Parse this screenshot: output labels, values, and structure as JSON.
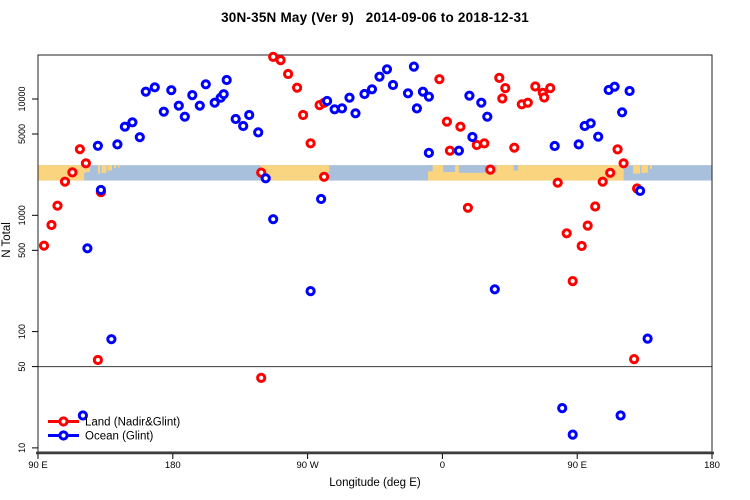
{
  "title": "30N-35N May (Ver 9)   2014-09-06 to 2018-12-31",
  "colors": {
    "land_series": "#FF0000",
    "ocean_series": "#0000FF",
    "band_ocean": "#A8C0DC",
    "band_land": "#FAD47F",
    "axis": "#000000",
    "ref_line": "#3c3c3c",
    "marker_fill": "#FFFFFF"
  },
  "legend": {
    "items": [
      {
        "label": "Land (Nadir&Glint)",
        "color": "#FF0000"
      },
      {
        "label": "Ocean (Glint)",
        "color": "#0000FF"
      }
    ]
  },
  "chart_data": {
    "type": "scatter",
    "title": "30N-35N May (Ver 9)   2014-09-06 to 2018-12-31",
    "xlabel": "Longitude (deg E)",
    "ylabel": "N Total",
    "xlim": [
      90,
      540
    ],
    "ylim": [
      10,
      30000
    ],
    "y_scale": "log",
    "grid": false,
    "legend_position": "bottom-left",
    "x_ticks": [
      {
        "value": 90,
        "label": "90 E"
      },
      {
        "value": 180,
        "label": "180"
      },
      {
        "value": 270,
        "label": "90 W"
      },
      {
        "value": 360,
        "label": "0"
      },
      {
        "value": 450,
        "label": "90 E"
      },
      {
        "value": 540,
        "label": "180"
      }
    ],
    "y_ticks": [
      {
        "value": 10000,
        "label": "10000"
      },
      {
        "value": 5000,
        "label": "5000"
      },
      {
        "value": 1000,
        "label": "1000"
      },
      {
        "value": 500,
        "label": "500"
      },
      {
        "value": 100,
        "label": "100"
      },
      {
        "value": 50,
        "label": "50"
      },
      {
        "value": 10,
        "label": "10"
      }
    ],
    "reference_line_y": 50,
    "map_band": {
      "description": "world coastline strip 30N-35N drawn across plot",
      "n_top": 2700,
      "n_bottom": 1990,
      "land_segments": [
        {
          "lon": [
            90,
            122
          ],
          "v": [
            0,
            1
          ]
        },
        {
          "lon": [
            122,
            124.7
          ],
          "v": [
            0,
            0.45
          ]
        },
        {
          "lon": [
            130,
            131.4
          ],
          "v": [
            0,
            0.55
          ]
        },
        {
          "lon": [
            132.4,
            135.7
          ],
          "v": [
            0,
            0.5
          ]
        },
        {
          "lon": [
            136.4,
            139.4
          ],
          "v": [
            0,
            0.35
          ]
        },
        {
          "lon": [
            140.7,
            142
          ],
          "v": [
            0,
            0.2
          ]
        },
        {
          "lon": [
            143.4,
            144.4
          ],
          "v": [
            0,
            0.15
          ]
        },
        {
          "lon": [
            238.5,
            284.5
          ],
          "v": [
            0,
            0.45
          ]
        },
        {
          "lon": [
            242,
            281.5
          ],
          "v": [
            0.45,
            0.75
          ]
        },
        {
          "lon": [
            245,
            279
          ],
          "v": [
            0.75,
            1
          ]
        },
        {
          "lon": [
            350.4,
            481
          ],
          "v": [
            0,
            1
          ]
        },
        {
          "lon": [
            487.3,
            492
          ],
          "v": [
            0,
            0.55
          ]
        },
        {
          "lon": [
            492.9,
            497.2
          ],
          "v": [
            0,
            0.5
          ]
        },
        {
          "lon": [
            498.6,
            499.9
          ],
          "v": [
            0,
            0.25
          ]
        }
      ],
      "ocean_notches": [
        {
          "lon": [
            350.4,
            353.5
          ],
          "v": [
            0,
            0.4
          ]
        },
        {
          "lon": [
            360.5,
            368.5
          ],
          "v": [
            0,
            0.45
          ]
        },
        {
          "lon": [
            371,
            396
          ],
          "v": [
            0,
            0.5
          ]
        },
        {
          "lon": [
            407.5,
            410.5
          ],
          "v": [
            0,
            0.35
          ]
        },
        {
          "lon": [
            120.8,
            122
          ],
          "v": [
            0.5,
            1
          ]
        }
      ]
    },
    "series": [
      {
        "name": "Land (Nadir&Glint)",
        "color": "#FF0000",
        "points": [
          [
            118,
            3700
          ],
          [
            122,
            2800
          ],
          [
            113,
            2340
          ],
          [
            108,
            1945
          ],
          [
            132,
            1580
          ],
          [
            103,
            1210
          ],
          [
            99,
            825
          ],
          [
            94,
            548
          ],
          [
            130,
            57
          ],
          [
            239,
            2330
          ],
          [
            239,
            40
          ],
          [
            247,
            23000
          ],
          [
            252,
            21600
          ],
          [
            257,
            16400
          ],
          [
            263,
            12500
          ],
          [
            267,
            7280
          ],
          [
            272,
            4160
          ],
          [
            278,
            8870
          ],
          [
            281,
            9270
          ],
          [
            281,
            2145
          ],
          [
            358,
            14800
          ],
          [
            363,
            6380
          ],
          [
            372,
            5780
          ],
          [
            365,
            3590
          ],
          [
            383,
            4020
          ],
          [
            388,
            4150
          ],
          [
            392,
            2470
          ],
          [
            377,
            1160
          ],
          [
            398,
            15200
          ],
          [
            402,
            12400
          ],
          [
            400,
            10100
          ],
          [
            413,
            9000
          ],
          [
            417,
            9290
          ],
          [
            422,
            12800
          ],
          [
            427,
            11300
          ],
          [
            428,
            10300
          ],
          [
            432,
            12400
          ],
          [
            408,
            3810
          ],
          [
            437,
            1905
          ],
          [
            443,
            700
          ],
          [
            447,
            272
          ],
          [
            453,
            545
          ],
          [
            457,
            815
          ],
          [
            462,
            1190
          ],
          [
            467,
            1945
          ],
          [
            472,
            2320
          ],
          [
            477,
            3690
          ],
          [
            481,
            2800
          ],
          [
            488,
            58
          ],
          [
            490,
            1700
          ]
        ]
      },
      {
        "name": "Ocean (Glint)",
        "color": "#0000FF",
        "points": [
          [
            130,
            3960
          ],
          [
            143,
            4070
          ],
          [
            148,
            5780
          ],
          [
            153,
            6310
          ],
          [
            158,
            4690
          ],
          [
            162,
            11560
          ],
          [
            168,
            12600
          ],
          [
            174,
            7780
          ],
          [
            179,
            11900
          ],
          [
            184,
            8750
          ],
          [
            188,
            7050
          ],
          [
            193,
            10800
          ],
          [
            198,
            8750
          ],
          [
            202,
            13380
          ],
          [
            208,
            9290
          ],
          [
            212,
            10260
          ],
          [
            214,
            11000
          ],
          [
            216,
            14560
          ],
          [
            222,
            6730
          ],
          [
            227,
            5860
          ],
          [
            231,
            7280
          ],
          [
            237,
            5160
          ],
          [
            132,
            1650
          ],
          [
            123,
            520
          ],
          [
            139,
            86
          ],
          [
            120,
            19
          ],
          [
            242,
            2080
          ],
          [
            283,
            9620
          ],
          [
            288,
            8150
          ],
          [
            293,
            8310
          ],
          [
            298,
            10260
          ],
          [
            302,
            7530
          ],
          [
            308,
            11040
          ],
          [
            313,
            12110
          ],
          [
            318,
            15560
          ],
          [
            323,
            18000
          ],
          [
            327,
            13200
          ],
          [
            337,
            11200
          ],
          [
            341,
            19000
          ],
          [
            343,
            8310
          ],
          [
            347,
            11560
          ],
          [
            351,
            10470
          ],
          [
            378,
            10680
          ],
          [
            386,
            9290
          ],
          [
            390,
            7040
          ],
          [
            380,
            4710
          ],
          [
            351,
            3440
          ],
          [
            371,
            3590
          ],
          [
            279,
            1380
          ],
          [
            247,
            925
          ],
          [
            272,
            223
          ],
          [
            435,
            3940
          ],
          [
            451,
            4070
          ],
          [
            455,
            5860
          ],
          [
            459,
            6180
          ],
          [
            464,
            4740
          ],
          [
            471,
            11940
          ],
          [
            475,
            12760
          ],
          [
            480,
            7690
          ],
          [
            485,
            11720
          ],
          [
            492,
            1620
          ],
          [
            395,
            231
          ],
          [
            497,
            87
          ],
          [
            440,
            22
          ],
          [
            479,
            19
          ],
          [
            447,
            13
          ]
        ]
      }
    ]
  }
}
